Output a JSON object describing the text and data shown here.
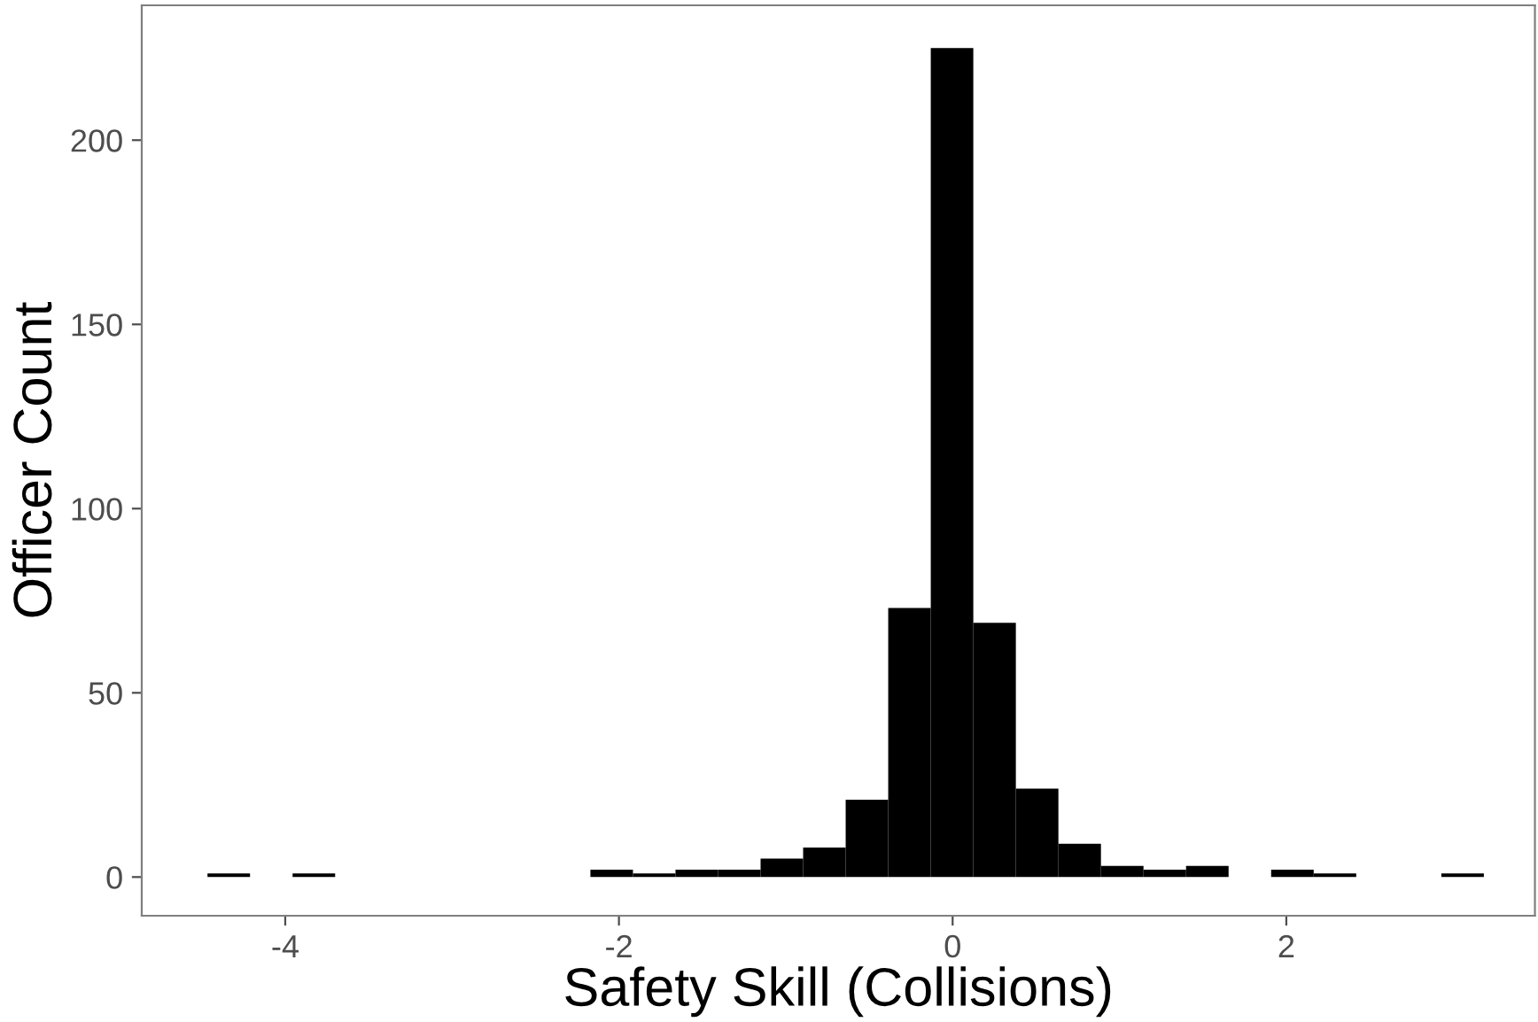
{
  "chart_data": {
    "type": "histogram",
    "xlabel": "Safety Skill (Collisions)",
    "ylabel": "Officer Count",
    "bins": [
      -4.466,
      -4.211,
      -3.956,
      -3.701,
      -3.446,
      -3.191,
      -2.936,
      -2.681,
      -2.426,
      -2.171,
      -1.916,
      -1.661,
      -1.406,
      -1.151,
      -0.896,
      -0.641,
      -0.386,
      -0.131,
      0.124,
      0.379,
      0.634,
      0.889,
      1.144,
      1.399,
      1.654,
      1.909,
      2.164,
      2.419,
      2.674,
      2.929,
      3.184
    ],
    "values": [
      1,
      0,
      1,
      0,
      0,
      0,
      0,
      0,
      0,
      2,
      1,
      2,
      2,
      5,
      8,
      21,
      73,
      225,
      69,
      24,
      9,
      3,
      2,
      3,
      0,
      2,
      1,
      0,
      0,
      1
    ],
    "color": "#000000",
    "xlim": [
      -4.86,
      3.49
    ],
    "ylim": [
      -10.5,
      236.6
    ],
    "xticks": [
      -4,
      -2,
      0,
      2
    ],
    "yticks": [
      0,
      50,
      100,
      150,
      200
    ],
    "grid": false,
    "legend": false
  }
}
